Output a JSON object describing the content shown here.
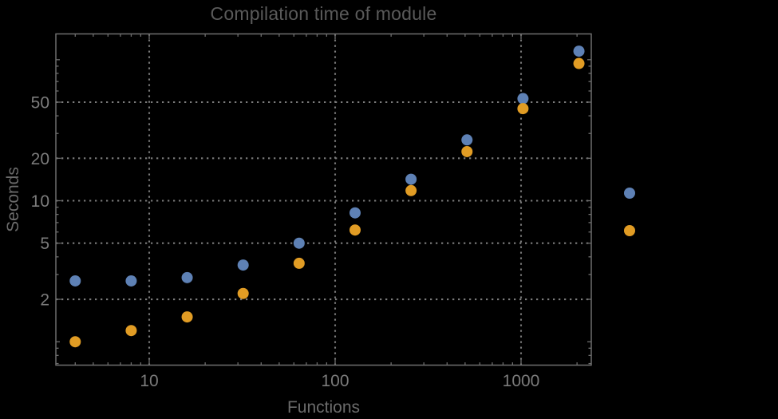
{
  "title": "Compilation time of module",
  "chart_data": {
    "type": "scatter",
    "title": "Compilation time of module",
    "xlabel": "Functions",
    "ylabel": "Seconds",
    "x_scale": "log",
    "y_scale": "log",
    "grid": "dotted",
    "x": [
      4,
      8,
      16,
      32,
      64,
      128,
      256,
      512,
      1024,
      2048
    ],
    "series": [
      {
        "name": "blue-series",
        "color": "#5E81B5",
        "values": [
          2.7,
          2.7,
          2.85,
          3.5,
          5.0,
          8.2,
          14.2,
          27,
          53,
          115
        ]
      },
      {
        "name": "orange-series",
        "color": "#E19C24",
        "values": [
          1.0,
          1.2,
          1.5,
          2.2,
          3.6,
          6.2,
          11.8,
          22.3,
          45,
          94
        ]
      }
    ],
    "x_ticks": {
      "values": [
        10,
        100,
        1000
      ],
      "labels": [
        "10",
        "100",
        "1000"
      ]
    },
    "y_ticks": {
      "values": [
        2,
        5,
        10,
        20,
        50
      ],
      "labels": [
        "2",
        "5",
        "10",
        "20",
        "50"
      ]
    },
    "xlim": [
      3.15,
      2390
    ],
    "ylim": [
      0.69,
      151
    ],
    "legend": {
      "position": "right-outside",
      "entries": [
        {
          "marker_color": "#5E81B5"
        },
        {
          "marker_color": "#E19C24"
        }
      ]
    }
  },
  "colors": {
    "background": "#000000",
    "frame": "#6e6e6e",
    "grid": "#7b7b7b",
    "tick_label": "#7b7b7b",
    "axis_label": "#6b6b6b",
    "title": "#5a5a5a"
  }
}
